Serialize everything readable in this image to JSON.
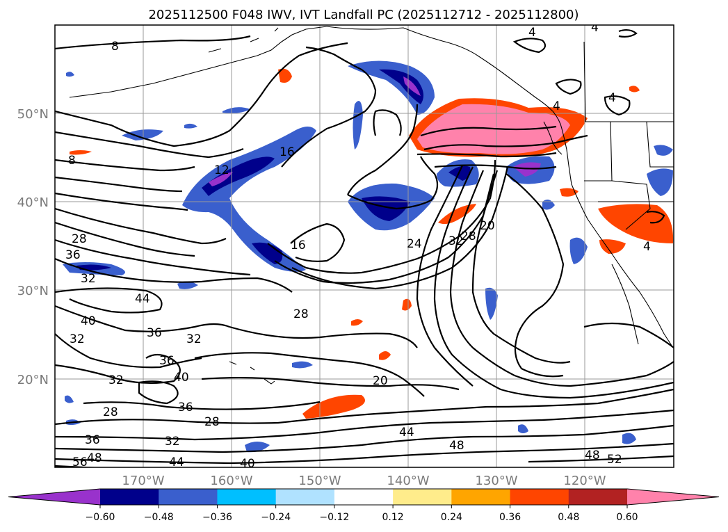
{
  "title": "2025112500 F048 IWV, IVT Landfall PC (2025112712 - 2025112800)",
  "lat_labels": [
    "50°N",
    "40°N",
    "30°N",
    "20°N"
  ],
  "lon_labels": [
    "170°W",
    "160°W",
    "150°W",
    "140°W",
    "130°W",
    "120°W"
  ],
  "colorbar": {
    "ticks": [
      "−0.60",
      "−0.48",
      "−0.36",
      "−0.24",
      "−0.12",
      "0.12",
      "0.24",
      "0.36",
      "0.48",
      "0.60"
    ],
    "colors": [
      "#9932cc",
      "#00008b",
      "#3a5fcd",
      "#00bfff",
      "#b0e2ff",
      "#ffffff",
      "#ffec8b",
      "#ffa500",
      "#ff4500",
      "#b22222",
      "#ff82ab"
    ],
    "extend": "both"
  },
  "contour_labels": {
    "l8a": "8",
    "l8b": "8",
    "l4a": "4",
    "l4b": "4",
    "l4c": "4",
    "l4d": "4",
    "l4e": "4",
    "l16a": "16",
    "l16b": "16",
    "l12": "12",
    "l28a": "28",
    "l28b": "28",
    "l28c": "28",
    "l28d": "28",
    "l28e": "28",
    "l36a": "36",
    "l36b": "36",
    "l36c": "36",
    "l36d": "36",
    "l36e": "36",
    "l32a": "32",
    "l32b": "32",
    "l32c": "32",
    "l32d": "32",
    "l32e": "32",
    "l32f": "32",
    "l44a": "44",
    "l44b": "44",
    "l44c": "44",
    "l40a": "40",
    "l40b": "40",
    "l40c": "40",
    "l24": "24",
    "l20a": "20",
    "l20b": "20",
    "l48a": "48",
    "l48b": "48",
    "l48c": "48",
    "l52": "52",
    "l56": "56"
  }
}
